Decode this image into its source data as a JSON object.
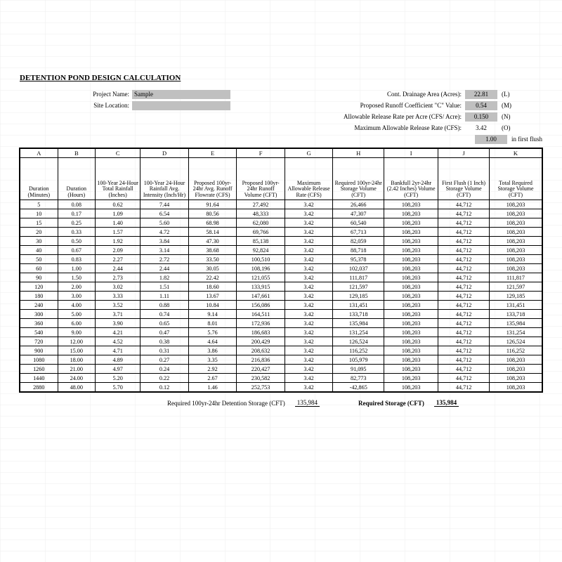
{
  "title": "DETENTION POND DESIGN CALCULATION",
  "meta": {
    "projectNameLabel": "Project Name:",
    "projectName": "Sample",
    "siteLocationLabel": "Site Location:",
    "siteLocation": "",
    "drainageAreaLabel": "Cont. Drainage Area (Acres):",
    "drainageArea": "22.81",
    "drainageAreaSuffix": "(L)",
    "cValueLabel": "Proposed Runoff Coefficient \"C\" Value:",
    "cValue": "0.54",
    "cValueSuffix": "(M)",
    "releasePerAcreLabel": "Allowable Release Rate per Acre (CFS/ Acre):",
    "releasePerAcre": "0.150",
    "releasePerAcreSuffix": "(N)",
    "maxReleaseLabel": "Maximum Allowable Release Rate (CFS):",
    "maxRelease": "3.42",
    "maxReleaseSuffix": "(O)",
    "firstFlushValue": "1.00",
    "firstFlushText": "in first flush"
  },
  "columns": {
    "letters": [
      "A",
      "B",
      "C",
      "D",
      "E",
      "F",
      "G",
      "H",
      "I",
      "J",
      "K"
    ],
    "widths": [
      50,
      50,
      60,
      64,
      64,
      64,
      64,
      68,
      72,
      68,
      70
    ],
    "desc": [
      "Duration (Minutes)",
      "Duration (Hours)",
      "100-Year 24-Hour Total Rainfall (Inches)",
      "100-Year 24-Hour Rainfall Avg. Intensity (Inch/Hr)",
      "Proposed 100yr-24hr Avg. Runoff Flowrate (CFS)",
      "Proposed 100yr-24hr Runoff Volume (CFT)",
      "Maximum Allowable Release Rate (CFS)",
      "Required 100yr-24hr Storage Volume (CFT)",
      "Bankfull 2yr-24hr (2.42 Inches) Volume (CFT)",
      "First Flush (1 Inch) Storage Volume (CFT)",
      "Total Required Storage Volume (CFT)"
    ]
  },
  "rows": [
    [
      "5",
      "0.08",
      "0.62",
      "7.44",
      "91.64",
      "27,492",
      "3.42",
      "26,466",
      "108,203",
      "44,712",
      "108,203"
    ],
    [
      "10",
      "0.17",
      "1.09",
      "6.54",
      "80.56",
      "48,333",
      "3.42",
      "47,307",
      "108,203",
      "44,712",
      "108,203"
    ],
    [
      "15",
      "0.25",
      "1.40",
      "5.60",
      "68.98",
      "62,080",
      "3.42",
      "60,540",
      "108,203",
      "44,712",
      "108,203"
    ],
    [
      "20",
      "0.33",
      "1.57",
      "4.72",
      "58.14",
      "69,766",
      "3.42",
      "67,713",
      "108,203",
      "44,712",
      "108,203"
    ],
    [
      "30",
      "0.50",
      "1.92",
      "3.84",
      "47.30",
      "85,138",
      "3.42",
      "82,059",
      "108,203",
      "44,712",
      "108,203"
    ],
    [
      "40",
      "0.67",
      "2.09",
      "3.14",
      "38.68",
      "92,824",
      "3.42",
      "88,718",
      "108,203",
      "44,712",
      "108,203"
    ],
    [
      "50",
      "0.83",
      "2.27",
      "2.72",
      "33.50",
      "100,510",
      "3.42",
      "95,378",
      "108,203",
      "44,712",
      "108,203"
    ],
    [
      "60",
      "1.00",
      "2.44",
      "2.44",
      "30.05",
      "108,196",
      "3.42",
      "102,037",
      "108,203",
      "44,712",
      "108,203"
    ],
    [
      "90",
      "1.50",
      "2.73",
      "1.82",
      "22.42",
      "121,055",
      "3.42",
      "111,817",
      "108,203",
      "44,712",
      "111,817"
    ],
    [
      "120",
      "2.00",
      "3.02",
      "1.51",
      "18.60",
      "133,915",
      "3.42",
      "121,597",
      "108,203",
      "44,712",
      "121,597"
    ],
    [
      "180",
      "3.00",
      "3.33",
      "1.11",
      "13.67",
      "147,661",
      "3.42",
      "129,185",
      "108,203",
      "44,712",
      "129,185"
    ],
    [
      "240",
      "4.00",
      "3.52",
      "0.88",
      "10.84",
      "156,086",
      "3.42",
      "131,451",
      "108,203",
      "44,712",
      "131,451"
    ],
    [
      "300",
      "5.00",
      "3.71",
      "0.74",
      "9.14",
      "164,511",
      "3.42",
      "133,718",
      "108,203",
      "44,712",
      "133,718"
    ],
    [
      "360",
      "6.00",
      "3.90",
      "0.65",
      "8.01",
      "172,936",
      "3.42",
      "135,984",
      "108,203",
      "44,712",
      "135,984"
    ],
    [
      "540",
      "9.00",
      "4.21",
      "0.47",
      "5.76",
      "186,683",
      "3.42",
      "131,254",
      "108,203",
      "44,712",
      "131,254"
    ],
    [
      "720",
      "12.00",
      "4.52",
      "0.38",
      "4.64",
      "200,429",
      "3.42",
      "126,524",
      "108,203",
      "44,712",
      "126,524"
    ],
    [
      "900",
      "15.00",
      "4.71",
      "0.31",
      "3.86",
      "208,632",
      "3.42",
      "116,252",
      "108,203",
      "44,712",
      "116,252"
    ],
    [
      "1080",
      "18.00",
      "4.89",
      "0.27",
      "3.35",
      "216,836",
      "3.42",
      "105,979",
      "108,203",
      "44,712",
      "108,203"
    ],
    [
      "1260",
      "21.00",
      "4.97",
      "0.24",
      "2.92",
      "220,427",
      "3.42",
      "91,095",
      "108,203",
      "44,712",
      "108,203"
    ],
    [
      "1440",
      "24.00",
      "5.20",
      "0.22",
      "2.67",
      "230,582",
      "3.42",
      "82,773",
      "108,203",
      "44,712",
      "108,203"
    ],
    [
      "2880",
      "48.00",
      "5.70",
      "0.12",
      "1.46",
      "252,753",
      "3.42",
      "-42,865",
      "108,203",
      "44,712",
      "108,203"
    ]
  ],
  "summary": {
    "label1": "Required 100yr-24hr Detention Storage (CFT)",
    "value1": "135,984",
    "label2": "Required Storage (CFT)",
    "value2": "135,984"
  },
  "style": {
    "bgColor": "#ffffff",
    "gridColor": "#d0d0d0",
    "cellBg": "#c0c0c0",
    "textColor": "#000000",
    "fontFamily": "Times New Roman",
    "titleFontSize": 11,
    "bodyFontSize": 8.2,
    "metaFontSize": 9
  }
}
